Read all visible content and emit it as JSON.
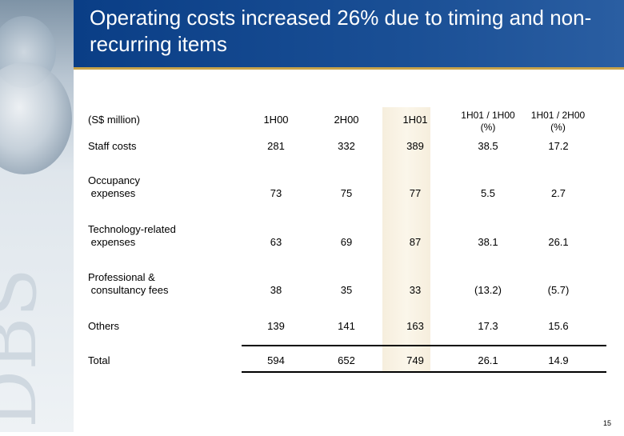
{
  "header": {
    "title": "Operating costs increased 26% due to timing and non-recurring items"
  },
  "table": {
    "unit_label": "(S$ million)",
    "columns": [
      "1H00",
      "2H00",
      "1H01",
      "1H01 / 1H00 (%)",
      "1H01 / 2H00 (%)"
    ],
    "rows": [
      {
        "label": "Staff costs",
        "values": [
          "281",
          "332",
          "389",
          "38.5",
          "17.2"
        ]
      },
      {
        "label": "Occupancy\n expenses",
        "values": [
          "73",
          "75",
          "77",
          "5.5",
          "2.7"
        ]
      },
      {
        "label": "Technology-related\n expenses",
        "values": [
          "63",
          "69",
          "87",
          "38.1",
          "26.1"
        ]
      },
      {
        "label": "Professional &\n consultancy fees",
        "values": [
          "38",
          "35",
          "33",
          "(13.2)",
          "(5.7)"
        ]
      },
      {
        "label": "Others",
        "values": [
          "139",
          "141",
          "163",
          "17.3",
          "15.6"
        ]
      },
      {
        "label": "Total",
        "values": [
          "594",
          "652",
          "749",
          "26.1",
          "14.9"
        ]
      }
    ]
  },
  "footer": {
    "page_number": "15",
    "watermark_text": "DBS"
  },
  "colors": {
    "header_bg": "#0a3e86",
    "header_rule": "#c8a349",
    "highlight_column": "#f6eedd"
  }
}
